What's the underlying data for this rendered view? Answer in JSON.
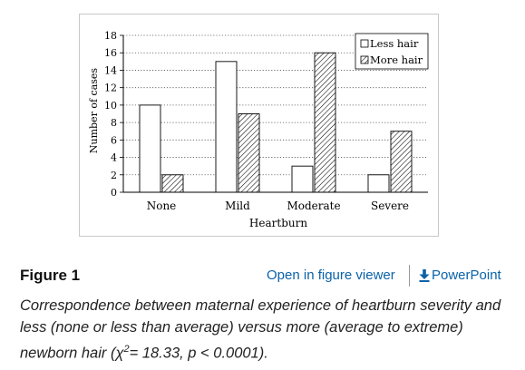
{
  "chart_data": {
    "type": "bar",
    "categories": [
      "None",
      "Mild",
      "Moderate",
      "Severe"
    ],
    "series": [
      {
        "name": "Less hair",
        "values": [
          10,
          15,
          3,
          2
        ],
        "pattern": "none",
        "fill": "#ffffff"
      },
      {
        "name": "More hair",
        "values": [
          2,
          9,
          16,
          7
        ],
        "pattern": "diagonal-hatch",
        "fill": "#ffffff"
      }
    ],
    "xlabel": "Heartburn",
    "ylabel": "Number of cases",
    "ylim": [
      0,
      18
    ],
    "yticks": [
      0,
      2,
      4,
      6,
      8,
      10,
      12,
      14,
      16,
      18
    ],
    "grid": "horizontal-dotted",
    "legend_position": "top-right",
    "colors": {
      "edge": "#000000",
      "grid": "#555555"
    }
  },
  "figure": {
    "label": "Figure 1",
    "viewer_link": "Open in figure viewer",
    "powerpoint_link": "PowerPoint",
    "powerpoint_icon": "download-icon",
    "caption_main": "Correspondence between maternal experience of heartburn severity and less (none or less than average) versus more (average to extreme) newborn hair (χ",
    "caption_sup": "2",
    "caption_tail": "= 18.33, p < 0.0001).",
    "link_color": "#0a62a8"
  }
}
